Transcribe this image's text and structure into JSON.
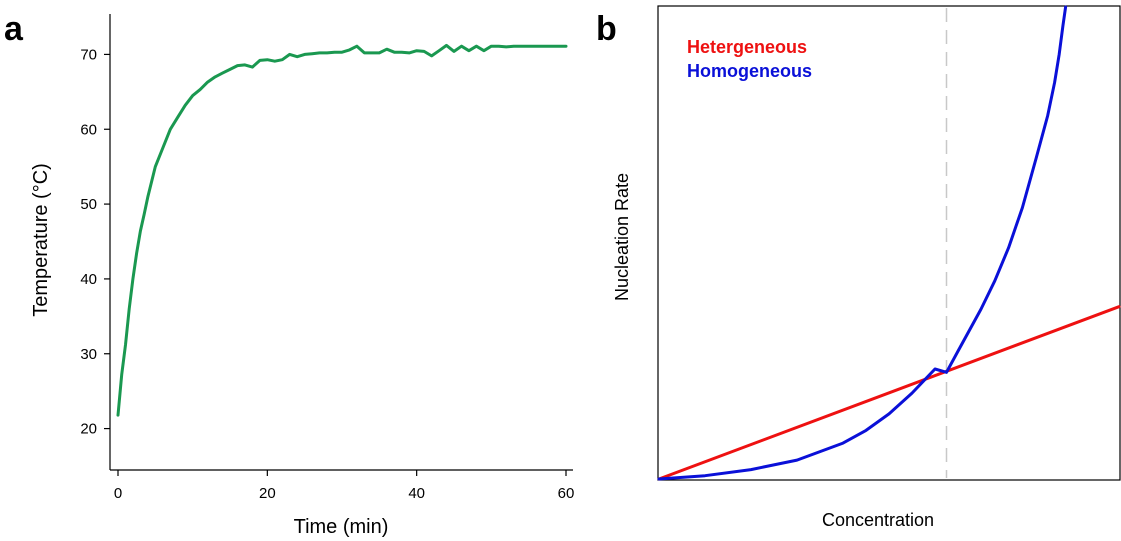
{
  "panel_a": {
    "letter": "a",
    "chart_data": {
      "type": "line",
      "xlabel": "Time (min)",
      "ylabel": "Temperature (°C)",
      "xlim": [
        0,
        60
      ],
      "ylim": [
        15,
        75
      ],
      "xticks": [
        0,
        20,
        40,
        60
      ],
      "yticks": [
        20,
        30,
        40,
        50,
        60,
        70
      ],
      "grid": false,
      "color": "#1a9850",
      "series": [
        {
          "x": [
            0,
            0.5,
            1,
            1.5,
            2,
            2.5,
            3,
            3.5,
            4,
            5,
            6,
            7,
            8,
            9,
            10,
            11,
            12,
            13,
            14,
            15,
            16,
            17,
            18,
            19,
            20,
            21,
            22,
            23,
            24,
            25,
            26,
            27,
            28,
            29,
            30,
            31,
            32,
            33,
            34,
            35,
            36,
            37,
            38,
            39,
            40,
            41,
            42,
            43,
            44,
            45,
            46,
            47,
            48,
            49,
            50,
            51,
            52,
            53,
            54,
            55,
            56,
            57,
            58,
            59,
            60
          ],
          "values": [
            21.8,
            27.2,
            31.2,
            36,
            40,
            43.5,
            46.4,
            48.6,
            51,
            55,
            57.5,
            60,
            61.6,
            63.2,
            64.5,
            65.3,
            66.3,
            67,
            67.5,
            68,
            68.5,
            68.6,
            68.3,
            69.2,
            69.3,
            69.1,
            69.3,
            70,
            69.7,
            70,
            70.1,
            70.2,
            70.2,
            70.3,
            70.3,
            70.6,
            71.1,
            70.2,
            70.2,
            70.2,
            70.7,
            70.3,
            70.3,
            70.2,
            70.5,
            70.4,
            69.8,
            70.5,
            71.2,
            70.4,
            71.1,
            70.5,
            71.1,
            70.5,
            71.1,
            71.1,
            71,
            71.1,
            71.1,
            71.1,
            71.1,
            71.1,
            71.1,
            71.1,
            71.1
          ]
        }
      ]
    }
  },
  "panel_b": {
    "letter": "b",
    "chart_data": {
      "type": "line",
      "xlabel": "Concentration",
      "ylabel": "Nucleation Rate",
      "xlim": [
        0,
        1
      ],
      "ylim": [
        0,
        1
      ],
      "xticks": [],
      "yticks": [],
      "grid": false,
      "legend_position": "top-left",
      "reference_line": {
        "x": 0.625,
        "style": "dashed",
        "color": "#c8c8c8"
      },
      "series": [
        {
          "name": "Hetergeneous",
          "color": "#ee1111",
          "x": [
            0,
            1
          ],
          "values": [
            0,
            0.365
          ]
        },
        {
          "name": "Homogeneous",
          "color": "#0a10d8",
          "x": [
            0,
            0.1,
            0.2,
            0.3,
            0.4,
            0.45,
            0.5,
            0.55,
            0.6,
            0.625,
            0.65,
            0.7,
            0.73,
            0.76,
            0.79,
            0.82,
            0.845,
            0.86,
            0.87,
            0.878,
            0.884
          ],
          "values": [
            0,
            0.007,
            0.02,
            0.04,
            0.076,
            0.103,
            0.138,
            0.182,
            0.233,
            0.226,
            0.271,
            0.36,
            0.42,
            0.49,
            0.575,
            0.68,
            0.77,
            0.84,
            0.9,
            0.96,
            1.0
          ]
        }
      ]
    }
  }
}
